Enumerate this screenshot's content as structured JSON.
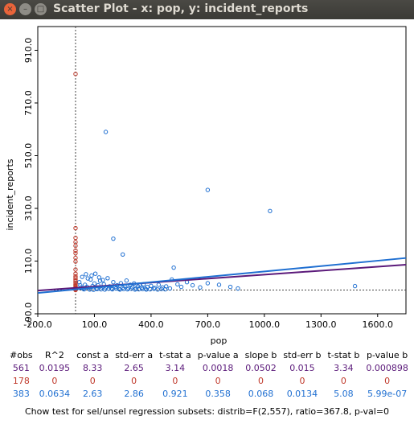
{
  "window": {
    "title": "Scatter Plot - x: pop, y: incident_reports",
    "close_glyph": "×",
    "min_glyph": "–",
    "max_glyph": "□"
  },
  "chart_data": {
    "type": "scatter",
    "xlabel": "pop",
    "ylabel": "incident_reports",
    "xlim": [
      -200,
      1750
    ],
    "ylim": [
      -90,
      1000
    ],
    "x_ticks": [
      "-200.0",
      "100.0",
      "400.0",
      "700.0",
      "1000.0",
      "1300.0",
      "1600.0"
    ],
    "y_ticks": [
      "-90.0",
      "110.0",
      "310.0",
      "510.0",
      "710.0",
      "910.0"
    ],
    "reference_x": 0,
    "reference_y": 0,
    "colors": {
      "selected": "#c0392b",
      "unselected": "#1f6fd1",
      "all_fit": "#5b1a7a",
      "unsel_fit": "#1f6fd1"
    },
    "fits": [
      {
        "name": "all",
        "intercept": 8.33,
        "slope": 0.0502,
        "color": "#5b1a7a"
      },
      {
        "name": "unselected",
        "intercept": 2.63,
        "slope": 0.068,
        "color": "#1f6fd1"
      }
    ],
    "selected_points": [
      [
        0,
        820
      ],
      [
        0,
        235
      ],
      [
        0,
        198
      ],
      [
        0,
        182
      ],
      [
        0,
        168
      ],
      [
        0,
        150
      ],
      [
        0,
        140
      ],
      [
        0,
        122
      ],
      [
        0,
        108
      ],
      [
        0,
        78
      ],
      [
        0,
        62
      ],
      [
        0,
        52
      ],
      [
        0,
        46
      ],
      [
        0,
        40
      ],
      [
        0,
        34
      ],
      [
        0,
        28
      ],
      [
        0,
        22
      ],
      [
        0,
        18
      ],
      [
        0,
        14
      ],
      [
        0,
        10
      ],
      [
        0,
        7
      ],
      [
        0,
        5
      ],
      [
        0,
        3
      ],
      [
        0,
        2
      ],
      [
        0,
        1
      ],
      [
        0,
        0
      ]
    ],
    "unselected_points": [
      [
        160,
        600
      ],
      [
        700,
        380
      ],
      [
        1030,
        300
      ],
      [
        200,
        195
      ],
      [
        250,
        135
      ],
      [
        520,
        85
      ],
      [
        1480,
        15
      ],
      [
        20,
        30
      ],
      [
        30,
        10
      ],
      [
        40,
        5
      ],
      [
        50,
        20
      ],
      [
        60,
        12
      ],
      [
        70,
        8
      ],
      [
        80,
        40
      ],
      [
        90,
        15
      ],
      [
        100,
        25
      ],
      [
        110,
        5
      ],
      [
        120,
        18
      ],
      [
        130,
        35
      ],
      [
        140,
        10
      ],
      [
        150,
        22
      ],
      [
        160,
        8
      ],
      [
        170,
        45
      ],
      [
        180,
        14
      ],
      [
        190,
        6
      ],
      [
        200,
        30
      ],
      [
        210,
        12
      ],
      [
        220,
        18
      ],
      [
        230,
        4
      ],
      [
        240,
        26
      ],
      [
        250,
        9
      ],
      [
        260,
        15
      ],
      [
        270,
        36
      ],
      [
        280,
        7
      ],
      [
        290,
        20
      ],
      [
        300,
        11
      ],
      [
        310,
        25
      ],
      [
        320,
        6
      ],
      [
        330,
        14
      ],
      [
        340,
        18
      ],
      [
        350,
        9
      ],
      [
        360,
        22
      ],
      [
        370,
        5
      ],
      [
        380,
        12
      ],
      [
        400,
        16
      ],
      [
        420,
        8
      ],
      [
        440,
        20
      ],
      [
        460,
        10
      ],
      [
        480,
        14
      ],
      [
        500,
        6
      ],
      [
        510,
        40
      ],
      [
        540,
        22
      ],
      [
        560,
        12
      ],
      [
        590,
        30
      ],
      [
        620,
        18
      ],
      [
        660,
        10
      ],
      [
        700,
        26
      ],
      [
        760,
        20
      ],
      [
        820,
        12
      ],
      [
        860,
        6
      ],
      [
        35,
        50
      ],
      [
        55,
        60
      ],
      [
        85,
        55
      ],
      [
        125,
        48
      ],
      [
        105,
        62
      ],
      [
        65,
        44
      ],
      [
        145,
        38
      ],
      [
        25,
        18
      ],
      [
        45,
        3
      ],
      [
        75,
        2
      ],
      [
        95,
        1
      ],
      [
        115,
        4
      ],
      [
        135,
        3
      ],
      [
        155,
        2
      ],
      [
        175,
        5
      ],
      [
        195,
        3
      ],
      [
        215,
        6
      ],
      [
        235,
        2
      ],
      [
        255,
        4
      ],
      [
        275,
        3
      ],
      [
        295,
        5
      ],
      [
        315,
        2
      ],
      [
        335,
        3
      ],
      [
        355,
        4
      ],
      [
        375,
        2
      ],
      [
        395,
        3
      ],
      [
        415,
        5
      ],
      [
        435,
        2
      ],
      [
        455,
        4
      ],
      [
        475,
        3
      ]
    ]
  },
  "stats": {
    "headers": [
      "#obs",
      "R^2",
      "const a",
      "std-err a",
      "t-stat a",
      "p-value a",
      "slope b",
      "std-err b",
      "t-stat b",
      "p-value b"
    ],
    "rows": [
      {
        "color": "#5b1a7a",
        "values": [
          "561",
          "0.0195",
          "8.33",
          "2.65",
          "3.14",
          "0.0018",
          "0.0502",
          "0.015",
          "3.34",
          "0.000898"
        ]
      },
      {
        "color": "#c0392b",
        "values": [
          "178",
          "0",
          "0",
          "0",
          "0",
          "0",
          "0",
          "0",
          "0",
          "0"
        ]
      },
      {
        "color": "#1f6fd1",
        "values": [
          "383",
          "0.0634",
          "2.63",
          "2.86",
          "0.921",
          "0.358",
          "0.068",
          "0.0134",
          "5.08",
          "5.99e-07"
        ]
      }
    ]
  },
  "chow_text": "Chow test for sel/unsel regression subsets: distrib=F(2,557), ratio=367.8, p-val=0"
}
